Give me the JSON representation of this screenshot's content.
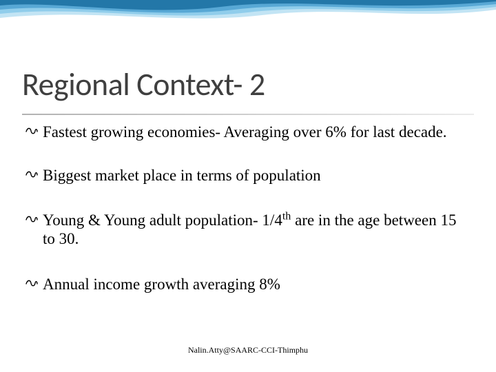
{
  "slide": {
    "title": "Regional Context- 2",
    "title_fontsize": 46,
    "title_color": "#3f3f3f",
    "underline_color_start": "rgba(0,0,0,0.3)",
    "underline_color_end": "rgba(0,0,0,0.08)",
    "bullets": [
      {
        "text": "Fastest growing economies- Averaging over 6%  for last decade.",
        "gap_after": 36
      },
      {
        "text": "Biggest market place in terms of population",
        "gap_after": 38
      },
      {
        "text_html": "Young & Young adult population- 1/4<sup>th</sup> are in the age between 15 to 30.",
        "gap_after": 38
      },
      {
        "text": "Annual income growth averaging 8%",
        "gap_after": 0
      }
    ],
    "bullet_marker": "☐",
    "bullet_marker_display": "☙",
    "body_fontsize": 23,
    "body_color": "#000000",
    "footer": "Nalin.Atty@SAARC-CCI-Thimphu",
    "footer_fontsize": 12
  },
  "decoration": {
    "wave_colors": [
      "#1a6ea0",
      "#4a9fd0",
      "#7fc5e8",
      "#a8d8ef"
    ],
    "background_color": "#ffffff"
  }
}
